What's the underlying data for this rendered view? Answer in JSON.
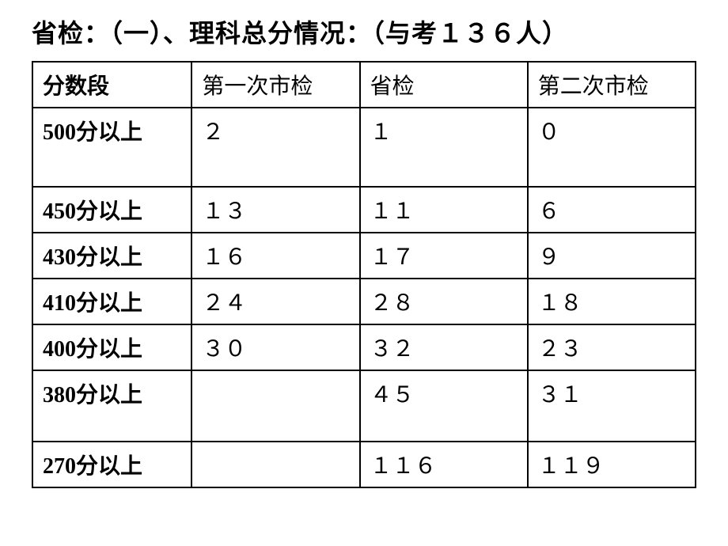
{
  "title": "省检：（一）、理科总分情况：（与考１３６人）",
  "table": {
    "columns": [
      "分数段",
      "第一次市检",
      "省检",
      "第二次市检"
    ],
    "rows": [
      {
        "range": "500分以上",
        "c1": "２",
        "c2": "１",
        "c3": "０",
        "tall": true
      },
      {
        "range": "450分以上",
        "c1": "１３",
        "c2": "１１",
        "c3": "６",
        "tall": false
      },
      {
        "range": "430分以上",
        "c1": "１６",
        "c2": "１７",
        "c3": "９",
        "tall": false
      },
      {
        "range": "410分以上",
        "c1": "２４",
        "c2": "２８",
        "c3": "１８",
        "tall": false
      },
      {
        "range": "400分以上",
        "c1": "３０",
        "c2": "３２",
        "c3": "２３",
        "tall": false
      },
      {
        "range": "380分以上",
        "c1": "",
        "c2": "４５",
        "c3": "３１",
        "tall": "med"
      },
      {
        "range": "270分以上",
        "c1": "",
        "c2": "１１６",
        "c3": "１１９",
        "tall": false
      }
    ]
  },
  "style": {
    "background_color": "#ffffff",
    "text_color": "#000000",
    "border_color": "#000000",
    "title_fontsize": 32,
    "cell_fontsize": 28,
    "font_family": "SimSun"
  }
}
